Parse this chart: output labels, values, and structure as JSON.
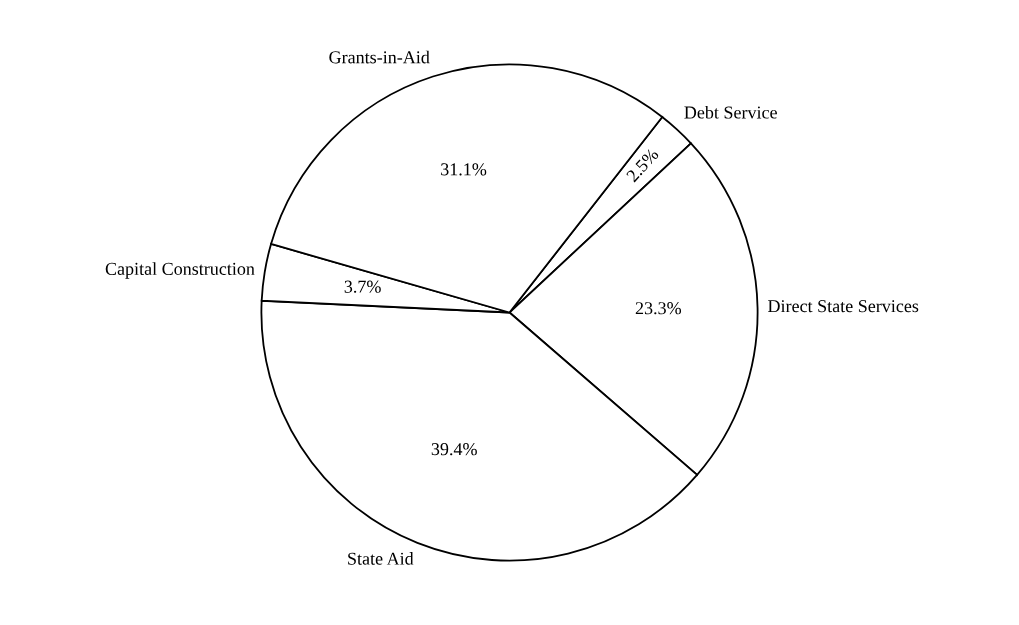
{
  "chart_data": {
    "type": "pie",
    "categories": [
      "Debt Service",
      "Direct State Services",
      "State Aid",
      "Capital Construction",
      "Grants-in-Aid"
    ],
    "values": [
      2.5,
      23.3,
      39.4,
      3.7,
      31.1
    ],
    "value_labels": [
      "2.5%",
      "23.3%",
      "39.4%",
      "3.7%",
      "31.1%"
    ],
    "colors": [
      "#ffffff",
      "#ffffff",
      "#ffffff",
      "#ffffff",
      "#ffffff"
    ],
    "legend": false
  }
}
